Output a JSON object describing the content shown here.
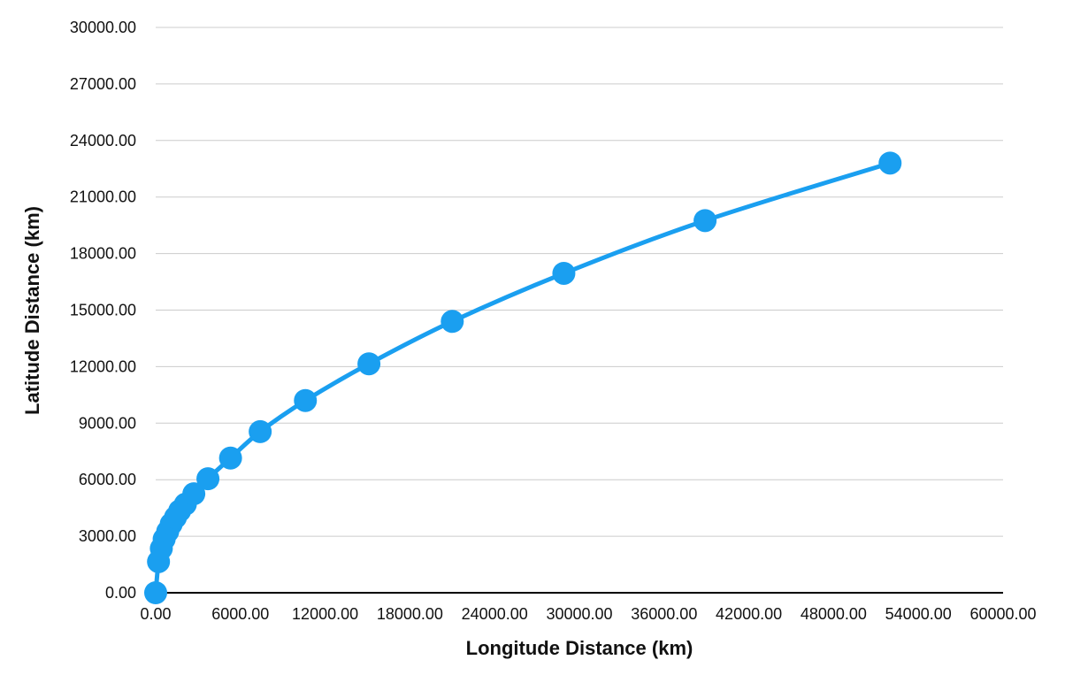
{
  "chart_data": {
    "type": "scatter",
    "title": "",
    "xlabel": "Longitude Distance (km)",
    "ylabel": "Latitude Distance (km)",
    "xlim": [
      0,
      60000
    ],
    "ylim": [
      0,
      30000
    ],
    "x_ticks": [
      "0.00",
      "6000.00",
      "12000.00",
      "18000.00",
      "24000.00",
      "30000.00",
      "36000.00",
      "42000.00",
      "48000.00",
      "54000.00",
      "60000.00"
    ],
    "y_ticks": [
      "0.00",
      "3000.00",
      "6000.00",
      "9000.00",
      "12000.00",
      "15000.00",
      "18000.00",
      "21000.00",
      "24000.00",
      "27000.00",
      "30000.00"
    ],
    "grid": true,
    "legend": "none",
    "connected_smooth_line": true,
    "series": [
      {
        "color": "#1a9ff0",
        "points": [
          {
            "x": 0,
            "y": 0
          },
          {
            "x": 200,
            "y": 1650
          },
          {
            "x": 400,
            "y": 2350
          },
          {
            "x": 600,
            "y": 2850
          },
          {
            "x": 850,
            "y": 3250
          },
          {
            "x": 1100,
            "y": 3650
          },
          {
            "x": 1400,
            "y": 4000
          },
          {
            "x": 1700,
            "y": 4350
          },
          {
            "x": 2100,
            "y": 4700
          },
          {
            "x": 2700,
            "y": 5250
          },
          {
            "x": 3700,
            "y": 6050
          },
          {
            "x": 5300,
            "y": 7150
          },
          {
            "x": 7400,
            "y": 8550
          },
          {
            "x": 10600,
            "y": 10200
          },
          {
            "x": 15100,
            "y": 12150
          },
          {
            "x": 21000,
            "y": 14400
          },
          {
            "x": 28900,
            "y": 16950
          },
          {
            "x": 38900,
            "y": 19750
          },
          {
            "x": 52000,
            "y": 22800
          }
        ]
      }
    ]
  }
}
